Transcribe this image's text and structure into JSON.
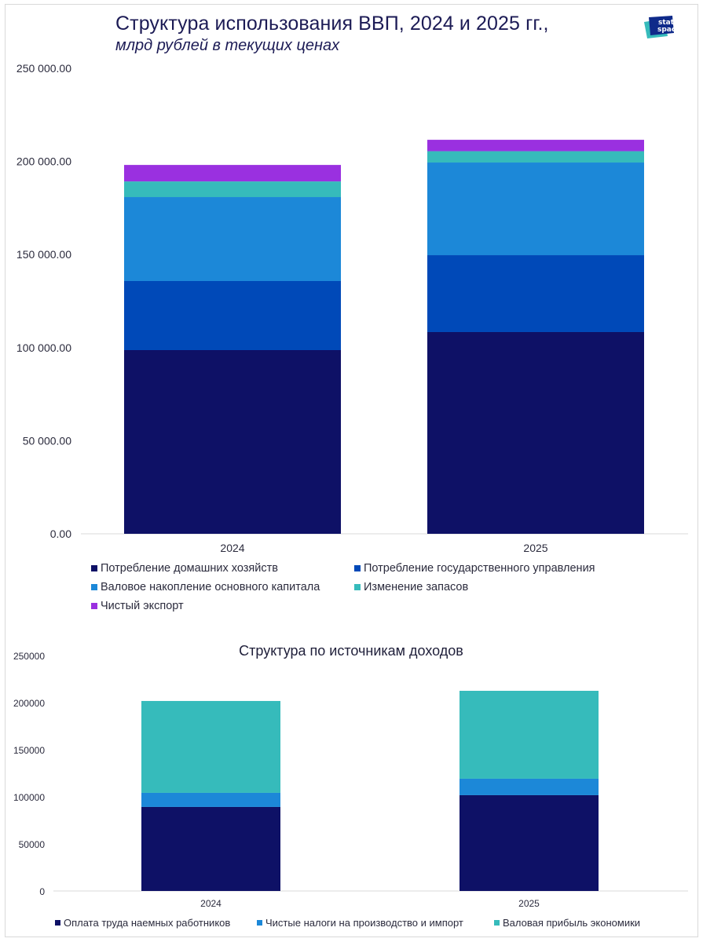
{
  "header": {
    "title": "Структура использования ВВП, 2024 и 2025 гг.,",
    "subtitle": "млрд рублей в текущих ценах",
    "logo_text_line1": "stat",
    "logo_text_line2": "space"
  },
  "chart_data": [
    {
      "type": "bar",
      "stacked": true,
      "title": "Структура использования ВВП, 2024 и 2025 гг., млрд рублей в текущих ценах",
      "xlabel": "",
      "ylabel": "",
      "categories": [
        "2024",
        "2025"
      ],
      "ylim": [
        0,
        250000
      ],
      "yticks": [
        0,
        50000,
        100000,
        150000,
        200000,
        250000
      ],
      "ytick_labels": [
        "0.00",
        "50 000.00",
        "100 000.00",
        "150 000.00",
        "200 000.00",
        "250 000.00"
      ],
      "grid": false,
      "legend_position": "bottom",
      "series": [
        {
          "name": "Потребление домашних хозяйств",
          "color": "#0e1166",
          "values": [
            98650,
            108350
          ]
        },
        {
          "name": "Потребление государственного управления",
          "color": "#0049b8",
          "values": [
            37100,
            41300
          ]
        },
        {
          "name": "Валовое накопление основного капитала",
          "color": "#1c88d8",
          "values": [
            45100,
            49750
          ]
        },
        {
          "name": "Изменение запасов",
          "color": "#36bbbb",
          "values": [
            8400,
            6100
          ]
        },
        {
          "name": "Чистый экспорт",
          "color": "#9a30e0",
          "values": [
            8850,
            6100
          ]
        }
      ]
    },
    {
      "type": "bar",
      "stacked": true,
      "title": "Структура по источникам доходов",
      "xlabel": "",
      "ylabel": "",
      "categories": [
        "2024",
        "2025"
      ],
      "ylim": [
        0,
        250000
      ],
      "yticks": [
        0,
        50000,
        100000,
        150000,
        200000,
        250000
      ],
      "ytick_labels": [
        "0",
        "50000",
        "100000",
        "150000",
        "200000",
        "250000"
      ],
      "grid": false,
      "legend_position": "bottom",
      "series": [
        {
          "name": "Оплата труда наемных работников",
          "color": "#0e1166",
          "values": [
            89200,
            101700
          ]
        },
        {
          "name": "Чистые налоги на производство и импорт",
          "color": "#1c88d8",
          "values": [
            15000,
            17500
          ]
        },
        {
          "name": "Валовая прибыль экономики",
          "color": "#36bbbb",
          "values": [
            97500,
            93300
          ]
        }
      ]
    }
  ]
}
